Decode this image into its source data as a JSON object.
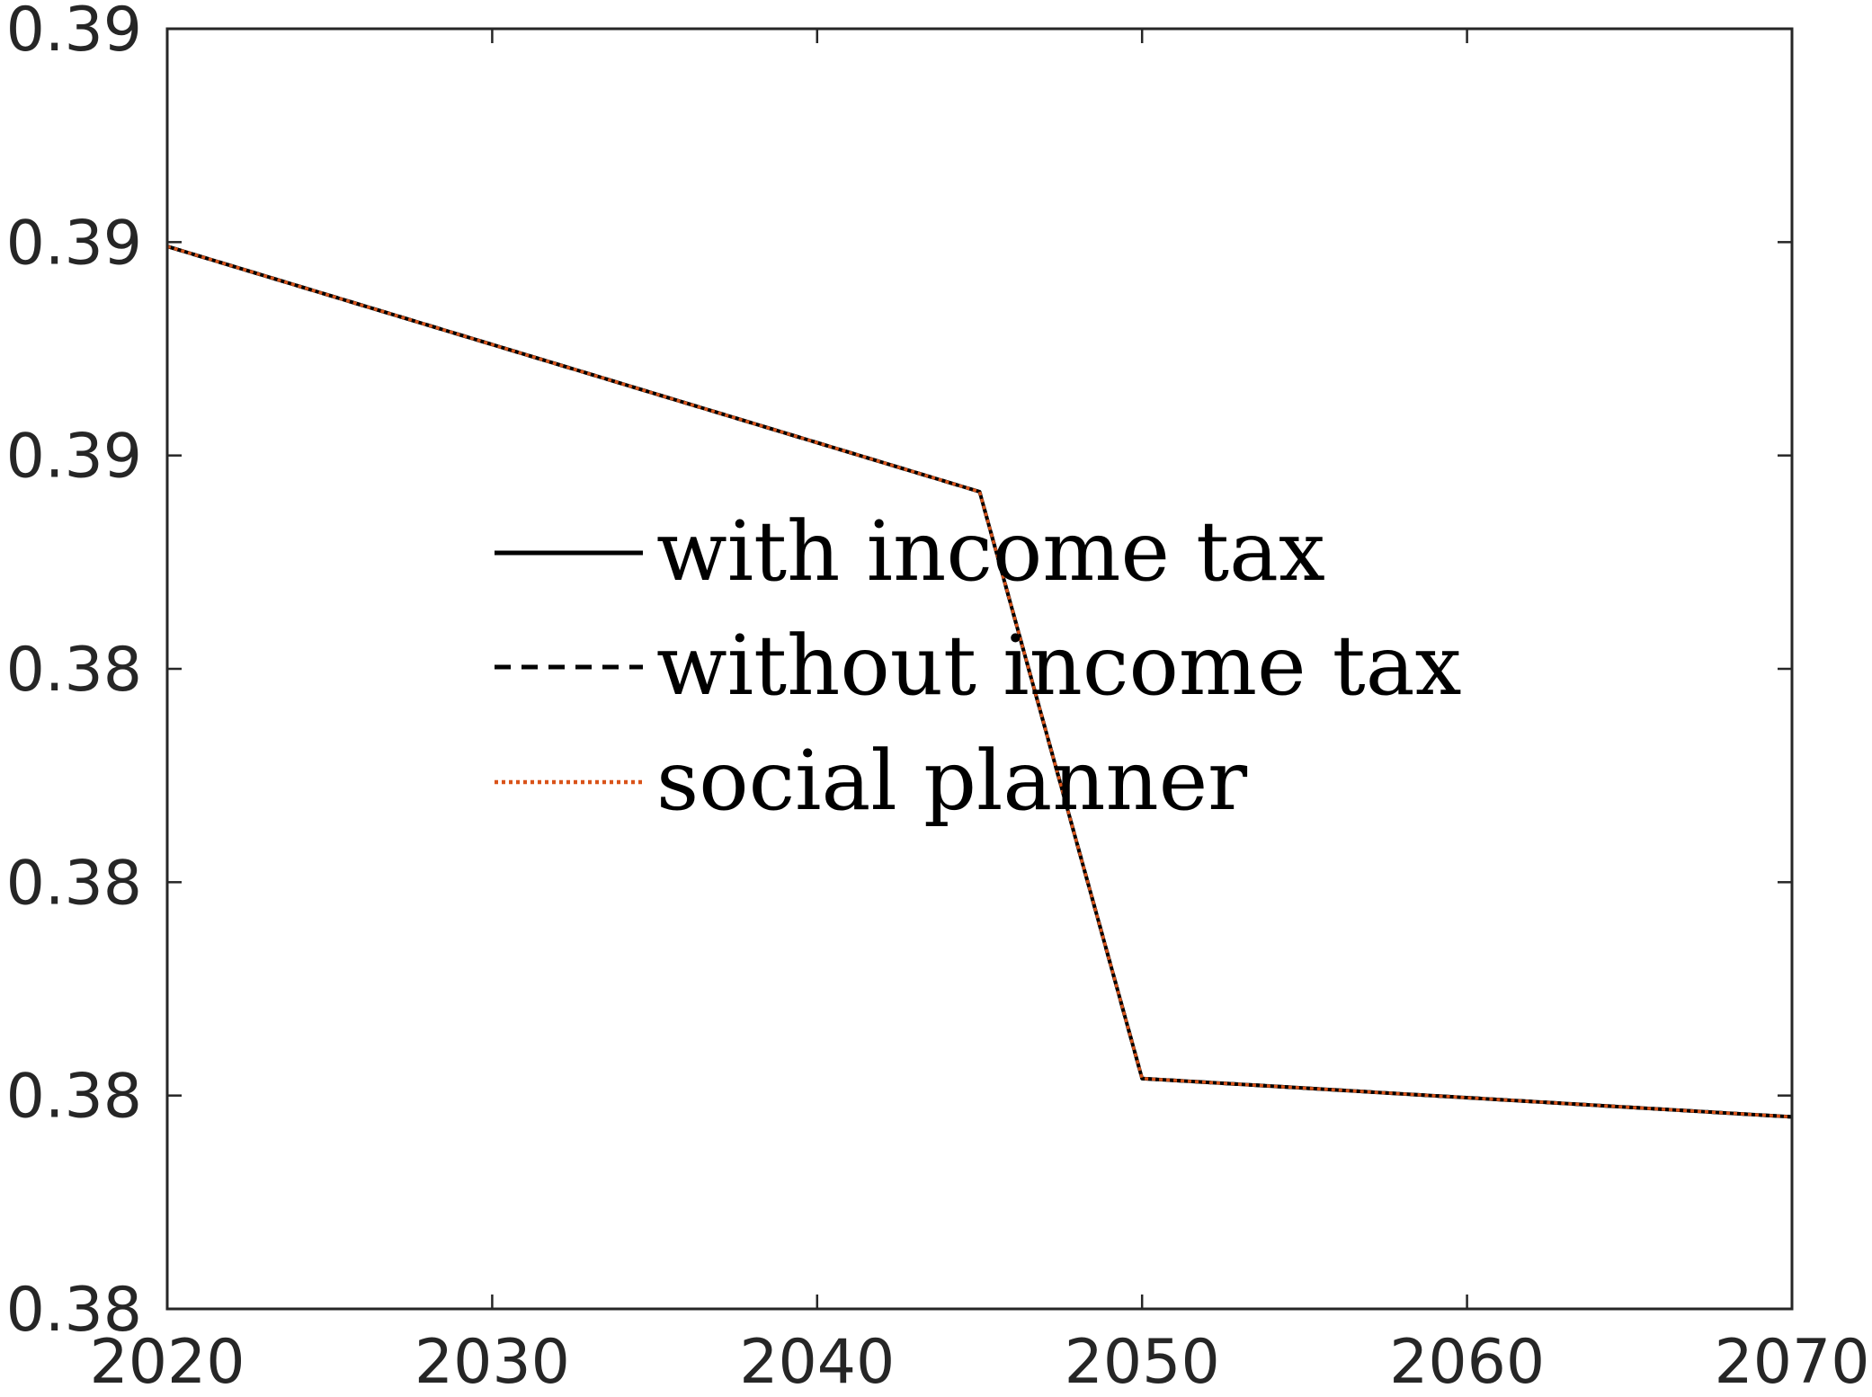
{
  "chart_data": {
    "type": "line",
    "title": "",
    "xlabel": "",
    "ylabel": "",
    "xlim": [
      2020,
      2070
    ],
    "ylim": [
      0.3788,
      0.3908
    ],
    "grid": false,
    "legend_position": "center",
    "x_ticks": [
      2020,
      2030,
      2040,
      2050,
      2060,
      2070
    ],
    "x_tick_labels": [
      "2020",
      "2030",
      "2040",
      "2050",
      "2060",
      "2070"
    ],
    "y_ticks": [
      0.3788,
      0.3808,
      0.3828,
      0.3848,
      0.3868,
      0.3888,
      0.3908
    ],
    "y_tick_labels": [
      "0.38",
      "0.38",
      "0.38",
      "0.38",
      "0.39",
      "0.39",
      "0.39"
    ],
    "x": [
      2020,
      2045,
      2050,
      2070
    ],
    "series": [
      {
        "name": "with income tax",
        "values": [
          0.38876,
          0.38646,
          0.38096,
          0.3806
        ],
        "color": "#000000",
        "style": "solid"
      },
      {
        "name": "without income tax",
        "values": [
          0.38876,
          0.38646,
          0.38096,
          0.3806
        ],
        "color": "#000000",
        "style": "dashed"
      },
      {
        "name": "social planner",
        "values": [
          0.38876,
          0.38646,
          0.38096,
          0.3806
        ],
        "color": "#D95319",
        "style": "dotted"
      }
    ]
  }
}
